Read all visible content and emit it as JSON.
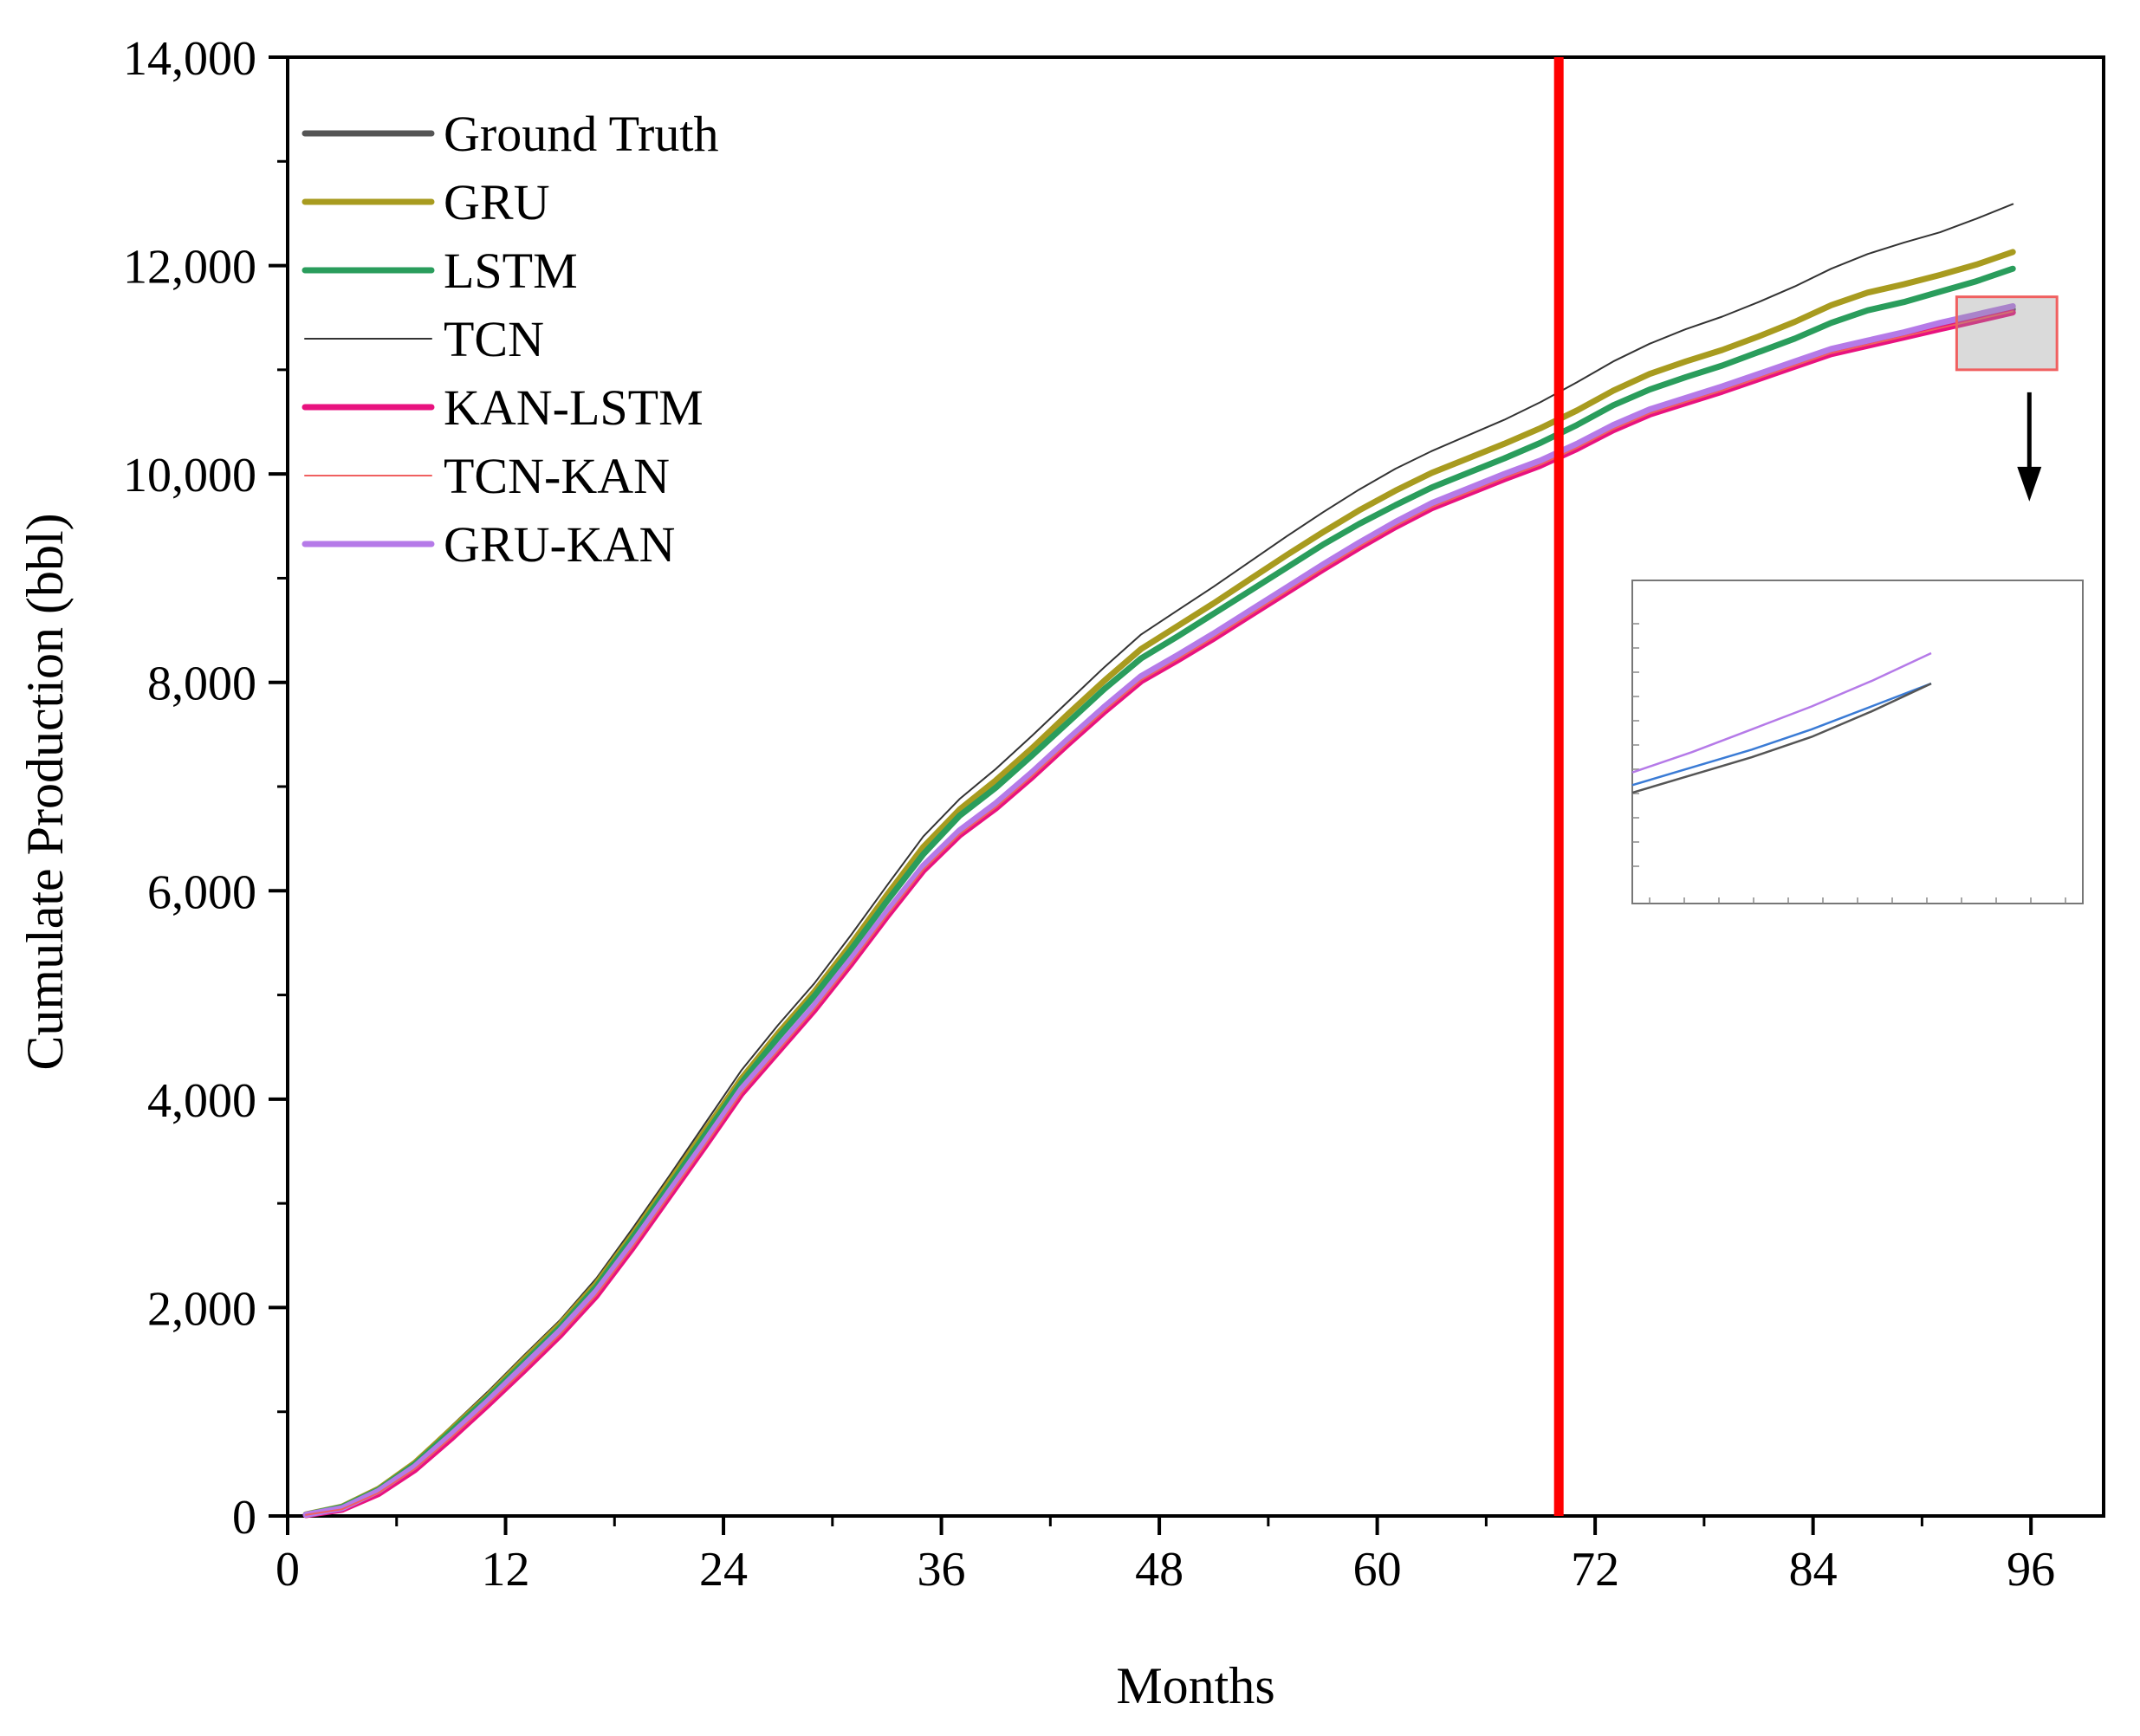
{
  "chart_data": {
    "type": "line",
    "title": "",
    "xlabel": "Months",
    "ylabel": "Cumulate Production (bbl)",
    "xlim": [
      0,
      100
    ],
    "ylim": [
      0,
      14000
    ],
    "x_ticks": [
      0,
      12,
      24,
      36,
      48,
      60,
      72,
      84,
      96
    ],
    "x_tick_labels": [
      "0",
      "12",
      "24",
      "36",
      "48",
      "60",
      "72",
      "84",
      "96"
    ],
    "y_ticks": [
      0,
      2000,
      4000,
      6000,
      8000,
      10000,
      12000,
      14000
    ],
    "y_tick_labels": [
      "0",
      "2,000",
      "4,000",
      "6,000",
      "8,000",
      "10,000",
      "12,000",
      "14,000"
    ],
    "legend_position": "top-left",
    "split_line": {
      "x": 70,
      "color": "#ff0000"
    },
    "zoom_box": {
      "x_range": [
        90,
        96
      ],
      "y_range": [
        11000,
        11700
      ]
    },
    "x": [
      1,
      3,
      5,
      7,
      9,
      11,
      13,
      15,
      17,
      19,
      21,
      23,
      25,
      27,
      29,
      31,
      33,
      35,
      37,
      39,
      41,
      43,
      45,
      47,
      49,
      51,
      53,
      55,
      57,
      59,
      61,
      63,
      65,
      67,
      69,
      71,
      73,
      75,
      77,
      79,
      81,
      83,
      85,
      87,
      89,
      91,
      93,
      95
    ],
    "series": [
      {
        "name": "Ground Truth",
        "color": "#555555",
        "width": 7,
        "values": [
          10,
          70,
          230,
          460,
          760,
          1080,
          1420,
          1760,
          2140,
          2600,
          3090,
          3580,
          4080,
          4480,
          4880,
          5320,
          5780,
          6220,
          6560,
          6820,
          7120,
          7440,
          7750,
          8040,
          8240,
          8450,
          8670,
          8890,
          9110,
          9320,
          9520,
          9700,
          9840,
          9980,
          10110,
          10270,
          10450,
          10600,
          10710,
          10820,
          10940,
          11060,
          11180,
          11260,
          11340,
          11420,
          11500,
          11580
        ]
      },
      {
        "name": "GRU",
        "color": "#a89b1f",
        "width": 7,
        "values": [
          15,
          90,
          260,
          510,
          830,
          1150,
          1500,
          1840,
          2230,
          2700,
          3200,
          3700,
          4200,
          4630,
          5030,
          5480,
          5960,
          6420,
          6780,
          7060,
          7370,
          7700,
          8020,
          8320,
          8540,
          8760,
          8990,
          9220,
          9440,
          9650,
          9840,
          10010,
          10150,
          10290,
          10440,
          10610,
          10800,
          10960,
          11080,
          11190,
          11320,
          11460,
          11620,
          11740,
          11820,
          11910,
          12010,
          12130
        ]
      },
      {
        "name": "LSTM",
        "color": "#2a9d5c",
        "width": 7,
        "values": [
          12,
          85,
          250,
          495,
          810,
          1130,
          1470,
          1810,
          2200,
          2670,
          3160,
          3660,
          4160,
          4590,
          4990,
          5430,
          5900,
          6350,
          6720,
          6990,
          7300,
          7620,
          7940,
          8230,
          8440,
          8660,
          8880,
          9100,
          9320,
          9520,
          9700,
          9870,
          10010,
          10150,
          10300,
          10470,
          10660,
          10810,
          10930,
          11040,
          11170,
          11300,
          11450,
          11570,
          11650,
          11750,
          11850,
          11970
        ]
      },
      {
        "name": "TCN",
        "color": "#333333",
        "width": 2,
        "values": [
          18,
          95,
          275,
          530,
          860,
          1190,
          1540,
          1880,
          2280,
          2760,
          3260,
          3770,
          4280,
          4710,
          5110,
          5570,
          6050,
          6520,
          6880,
          7170,
          7490,
          7820,
          8150,
          8460,
          8690,
          8920,
          9160,
          9400,
          9630,
          9850,
          10050,
          10220,
          10370,
          10520,
          10690,
          10880,
          11080,
          11250,
          11390,
          11510,
          11650,
          11800,
          11970,
          12110,
          12220,
          12320,
          12450,
          12590
        ]
      },
      {
        "name": "KAN-LSTM",
        "color": "#e8127f",
        "width": 7,
        "values": [
          8,
          60,
          210,
          440,
          740,
          1060,
          1390,
          1730,
          2110,
          2570,
          3060,
          3550,
          4050,
          4450,
          4850,
          5290,
          5750,
          6190,
          6530,
          6790,
          7090,
          7410,
          7720,
          8010,
          8210,
          8420,
          8640,
          8860,
          9080,
          9290,
          9490,
          9670,
          9810,
          9950,
          10080,
          10240,
          10420,
          10570,
          10680,
          10790,
          10910,
          11030,
          11150,
          11230,
          11310,
          11390,
          11470,
          11550
        ]
      },
      {
        "name": "TCN-KAN",
        "color": "#f06060",
        "width": 2,
        "values": [
          10,
          65,
          220,
          450,
          750,
          1070,
          1400,
          1740,
          2120,
          2580,
          3070,
          3560,
          4060,
          4460,
          4860,
          5300,
          5760,
          6200,
          6540,
          6800,
          7100,
          7420,
          7730,
          8020,
          8220,
          8430,
          8650,
          8870,
          9090,
          9300,
          9500,
          9680,
          9820,
          9960,
          10090,
          10250,
          10430,
          10580,
          10690,
          10800,
          10920,
          11040,
          11160,
          11240,
          11320,
          11400,
          11480,
          11560
        ]
      },
      {
        "name": "GRU-KAN",
        "color": "#b57ae8",
        "width": 7,
        "values": [
          12,
          75,
          240,
          475,
          780,
          1100,
          1440,
          1780,
          2160,
          2620,
          3110,
          3600,
          4100,
          4500,
          4900,
          5340,
          5800,
          6240,
          6580,
          6840,
          7140,
          7460,
          7770,
          8060,
          8260,
          8470,
          8690,
          8910,
          9130,
          9340,
          9540,
          9720,
          9860,
          10000,
          10130,
          10290,
          10470,
          10620,
          10730,
          10840,
          10960,
          11080,
          11200,
          11280,
          11360,
          11450,
          11530,
          11610
        ]
      }
    ]
  },
  "inset": {
    "series": [
      {
        "name": "GRU-KAN",
        "color": "#b57ae8",
        "values": [
          11280,
          11360,
          11450,
          11540,
          11640,
          11750
        ]
      },
      {
        "name": "TCN-KAN",
        "color": "#3a7bd5",
        "values": [
          11230,
          11300,
          11370,
          11450,
          11540,
          11630
        ]
      },
      {
        "name": "Ground Truth",
        "color": "#555555",
        "values": [
          11200,
          11270,
          11340,
          11420,
          11520,
          11630
        ]
      }
    ],
    "ylim": [
      10900,
      11900
    ]
  }
}
